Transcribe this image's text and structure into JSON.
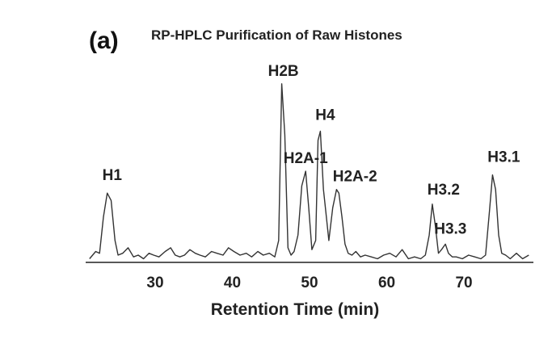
{
  "panel_label": "(a)",
  "chart_data": {
    "type": "line",
    "title": "RP-HPLC Purification of Raw Histones",
    "xlabel": "Retention Time (min)",
    "ylabel": "",
    "xlim": [
      21,
      79
    ],
    "ylim": [
      0,
      1.05
    ],
    "xticks": [
      30,
      40,
      50,
      60,
      70
    ],
    "grid": false,
    "legend": "none",
    "line_color": "#333333",
    "series": [
      {
        "x": [
          21.5,
          22.3,
          22.8,
          23.3,
          23.8,
          24.3,
          24.8,
          25.2,
          25.8,
          26.5,
          27.2,
          27.8,
          28.5,
          29.2,
          29.8,
          30.5,
          31.3,
          32.0,
          32.6,
          33.2,
          33.8,
          34.5,
          35.2,
          35.8,
          36.5,
          37.3,
          38.0,
          38.8,
          39.5,
          40.2,
          41.0,
          41.8,
          42.5,
          43.3,
          44.0,
          44.8,
          45.5,
          46.0,
          46.4,
          46.8,
          47.2,
          47.6,
          48.0,
          48.5,
          49.0,
          49.5,
          49.9,
          50.3,
          50.8,
          51.1,
          51.4,
          51.8,
          52.1,
          52.5,
          53.0,
          53.5,
          53.8,
          54.2,
          54.6,
          55.0,
          55.5,
          56.0,
          56.6,
          57.2,
          58.0,
          58.8,
          59.6,
          60.4,
          61.2,
          62.0,
          62.8,
          63.6,
          64.4,
          65.0,
          65.5,
          65.9,
          66.3,
          66.7,
          67.1,
          67.6,
          68.0,
          68.5,
          69.0,
          69.8,
          70.6,
          71.4,
          72.2,
          72.8,
          73.3,
          73.7,
          74.1,
          74.5,
          74.9,
          75.4,
          76.0,
          76.8,
          77.6,
          78.4
        ],
        "y": [
          0.02,
          0.06,
          0.05,
          0.25,
          0.38,
          0.34,
          0.12,
          0.04,
          0.05,
          0.08,
          0.03,
          0.04,
          0.02,
          0.05,
          0.04,
          0.03,
          0.06,
          0.08,
          0.04,
          0.03,
          0.04,
          0.07,
          0.05,
          0.04,
          0.03,
          0.06,
          0.05,
          0.04,
          0.08,
          0.06,
          0.04,
          0.05,
          0.03,
          0.06,
          0.04,
          0.05,
          0.03,
          0.12,
          0.98,
          0.7,
          0.08,
          0.04,
          0.06,
          0.15,
          0.42,
          0.5,
          0.3,
          0.07,
          0.12,
          0.67,
          0.72,
          0.4,
          0.28,
          0.12,
          0.3,
          0.4,
          0.38,
          0.25,
          0.1,
          0.05,
          0.04,
          0.06,
          0.03,
          0.04,
          0.03,
          0.02,
          0.04,
          0.05,
          0.03,
          0.07,
          0.02,
          0.03,
          0.02,
          0.04,
          0.15,
          0.32,
          0.2,
          0.05,
          0.07,
          0.1,
          0.05,
          0.03,
          0.03,
          0.02,
          0.04,
          0.03,
          0.02,
          0.04,
          0.28,
          0.48,
          0.4,
          0.15,
          0.05,
          0.04,
          0.02,
          0.05,
          0.02,
          0.04
        ]
      }
    ],
    "annotations": [
      {
        "text": "H1",
        "x": 23.8,
        "y": 0.38
      },
      {
        "text": "H2B",
        "x": 46.4,
        "y": 0.98
      },
      {
        "text": "H4",
        "x": 51.4,
        "y": 0.72
      },
      {
        "text": "H2A-1",
        "x": 49.5,
        "y": 0.5
      },
      {
        "text": "H2A-2",
        "x": 54.0,
        "y": 0.4
      },
      {
        "text": "H3.2",
        "x": 65.9,
        "y": 0.32
      },
      {
        "text": "H3.3",
        "x": 67.2,
        "y": 0.1
      },
      {
        "text": "H3.1",
        "x": 73.7,
        "y": 0.48
      }
    ]
  }
}
